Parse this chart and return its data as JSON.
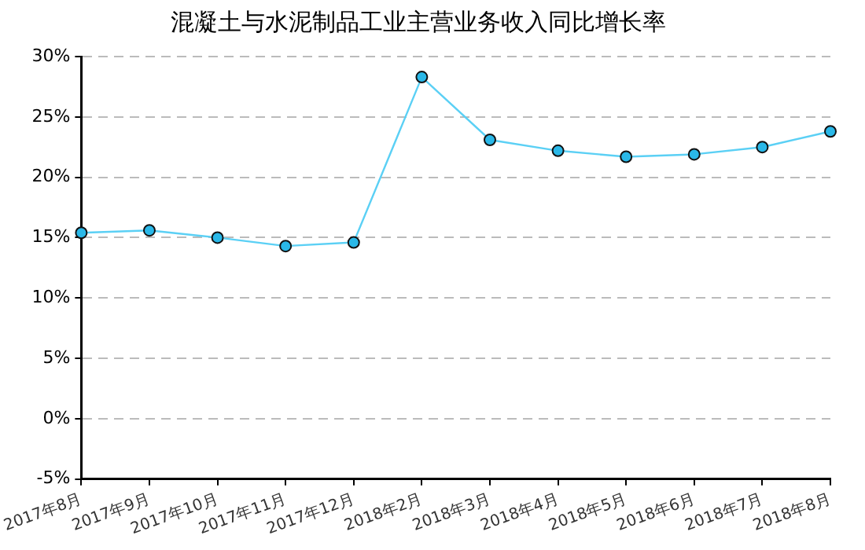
{
  "chart_data": {
    "type": "line",
    "title": "混凝土与水泥制品工业主营业务收入同比增长率",
    "categories": [
      "2017年8月",
      "2017年9月",
      "2017年10月",
      "2017年11月",
      "2017年12月",
      "2018年2月",
      "2018年3月",
      "2018年4月",
      "2018年5月",
      "2018年6月",
      "2018年7月",
      "2018年8月"
    ],
    "series": [
      {
        "color": "#5bd0f5",
        "values": [
          15.4,
          15.6,
          15.0,
          14.3,
          14.6,
          28.3,
          23.1,
          22.2,
          21.7,
          21.9,
          22.5,
          23.8
        ]
      }
    ],
    "ylim": [
      -5,
      30
    ],
    "yticks": [
      {
        "value": -5,
        "label": "-5%"
      },
      {
        "value": 0,
        "label": "0%"
      },
      {
        "value": 5,
        "label": "5%"
      },
      {
        "value": 10,
        "label": "10%"
      },
      {
        "value": 15,
        "label": "15%"
      },
      {
        "value": 20,
        "label": "20%"
      },
      {
        "value": 25,
        "label": "25%"
      },
      {
        "value": 30,
        "label": "30%"
      }
    ],
    "grid": "y",
    "legend": false,
    "marker": "circle",
    "line_style": "solid"
  }
}
